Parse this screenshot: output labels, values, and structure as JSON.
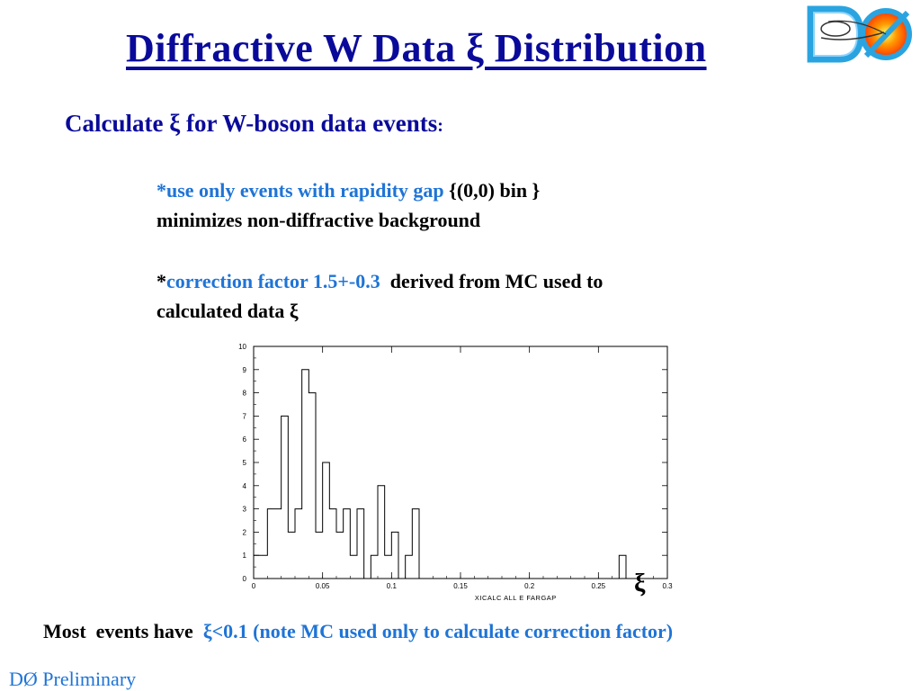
{
  "slide": {
    "title": "Diffractive W Data ξ Distribution",
    "logo_text": "DØ",
    "subheading": {
      "main": "Calculate  ξ for W-boson data events",
      "colon": ":"
    },
    "bullet1": {
      "star_and_blue": "*use only events with rapidity gap",
      "black_tail": " {(0,0) bin }",
      "line2": "minimizes non-diffractive background"
    },
    "bullet2": {
      "star": "*",
      "blue": "correction factor 1.5+-0.3",
      "black_tail": "  derived from MC used to",
      "line2": "calculated data ξ"
    },
    "xi_symbol": "ξ",
    "bottom": {
      "black": "Most  events have  ",
      "blue": "ξ<0.1 (note MC used only to calculate correction factor)"
    },
    "footer": "DØ Preliminary"
  },
  "colors": {
    "title": "#0a0a9a",
    "accent_blue": "#1f74d6",
    "text": "#000000"
  },
  "chart_data": {
    "type": "bar",
    "style": "step-histogram",
    "xlabel": "XICALC ALL E FARGAP",
    "ylabel": "",
    "xlim": [
      0,
      0.3
    ],
    "ylim": [
      0,
      10
    ],
    "bin_width": 0.005,
    "x_ticks": [
      "0",
      "0.05",
      "0.1",
      "0.15",
      "0.2",
      "0.25",
      "0.3"
    ],
    "y_ticks": [
      "0",
      "1",
      "2",
      "3",
      "4",
      "5",
      "6",
      "7",
      "8",
      "9",
      "10"
    ],
    "values": [
      1,
      1,
      3,
      3,
      7,
      2,
      3,
      9,
      8,
      2,
      5,
      3,
      2,
      3,
      1,
      3,
      0,
      1,
      4,
      1,
      2,
      0,
      1,
      3,
      0,
      0,
      0,
      0,
      0,
      0,
      0,
      0,
      0,
      0,
      0,
      0,
      0,
      0,
      0,
      0,
      0,
      0,
      0,
      0,
      0,
      0,
      0,
      0,
      0,
      0,
      0,
      0,
      0,
      1,
      0,
      0,
      0,
      0,
      0,
      0
    ],
    "nonzero_bins": [
      {
        "x": 0.0,
        "y": 1
      },
      {
        "x": 0.005,
        "y": 1
      },
      {
        "x": 0.01,
        "y": 3
      },
      {
        "x": 0.015,
        "y": 3
      },
      {
        "x": 0.02,
        "y": 7
      },
      {
        "x": 0.025,
        "y": 2
      },
      {
        "x": 0.03,
        "y": 3
      },
      {
        "x": 0.035,
        "y": 9
      },
      {
        "x": 0.04,
        "y": 8
      },
      {
        "x": 0.045,
        "y": 2
      },
      {
        "x": 0.05,
        "y": 5
      },
      {
        "x": 0.055,
        "y": 3
      },
      {
        "x": 0.06,
        "y": 2
      },
      {
        "x": 0.065,
        "y": 3
      },
      {
        "x": 0.07,
        "y": 1
      },
      {
        "x": 0.075,
        "y": 3
      },
      {
        "x": 0.085,
        "y": 1
      },
      {
        "x": 0.09,
        "y": 4
      },
      {
        "x": 0.095,
        "y": 1
      },
      {
        "x": 0.1,
        "y": 2
      },
      {
        "x": 0.11,
        "y": 1
      },
      {
        "x": 0.115,
        "y": 3
      },
      {
        "x": 0.265,
        "y": 1
      }
    ]
  }
}
